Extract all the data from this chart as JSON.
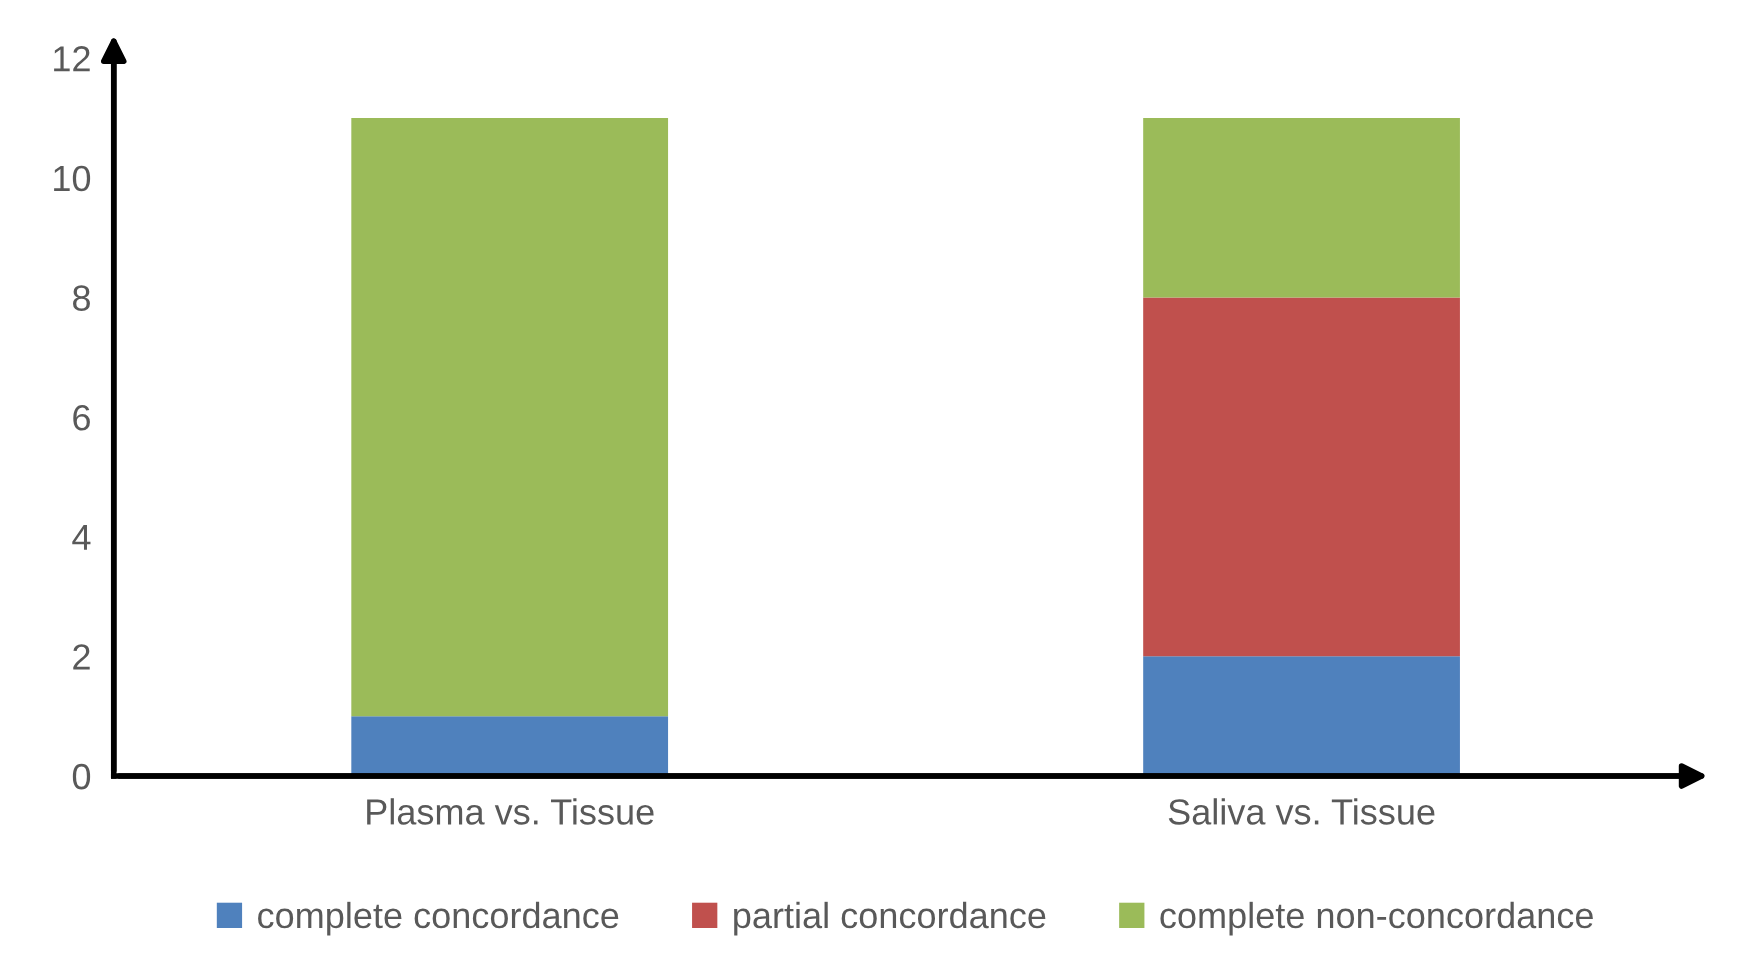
{
  "chart_data": {
    "type": "bar",
    "stacked": true,
    "categories": [
      "Plasma vs. Tissue",
      "Saliva vs. Tissue"
    ],
    "series": [
      {
        "name": "complete concordance",
        "color": "#4f81bd",
        "values": [
          1,
          2
        ]
      },
      {
        "name": "partial concordance",
        "color": "#c0504d",
        "values": [
          0,
          6
        ]
      },
      {
        "name": "complete non-concordance",
        "color": "#9bbb59",
        "values": [
          10,
          3
        ]
      }
    ],
    "ylim": [
      0,
      12
    ],
    "yticks": [
      0,
      2,
      4,
      6,
      8,
      10,
      12
    ],
    "grid": false,
    "legend": "bottom"
  }
}
